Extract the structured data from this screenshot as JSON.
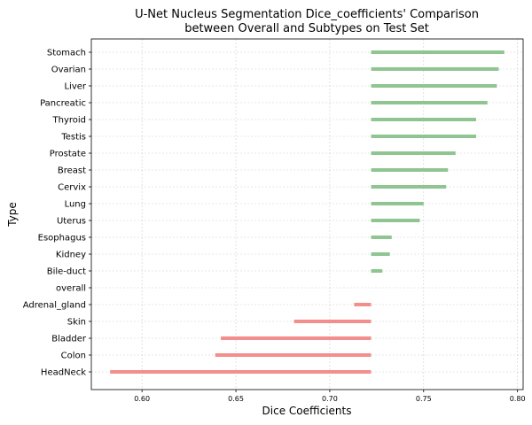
{
  "chart_data": {
    "type": "bar",
    "orientation": "horizontal-diverging",
    "title_line1": "U-Net Nucleus Segmentation Dice_coefficients' Comparison",
    "title_line2": "between Overall and Subtypes on Test Set",
    "xlabel": "Dice Coefficients",
    "ylabel": "Type",
    "xlim": [
      0.573,
      0.803
    ],
    "baseline_category": "overall",
    "baseline_value": 0.722,
    "x_ticks": [
      "0.60",
      "0.65",
      "0.70",
      "0.75",
      "0.80"
    ],
    "grid": true,
    "colors": {
      "above": "#8fc591",
      "below": "#f28e8c"
    },
    "categories": [
      "Stomach",
      "Ovarian",
      "Liver",
      "Pancreatic",
      "Thyroid",
      "Testis",
      "Prostate",
      "Breast",
      "Cervix",
      "Lung",
      "Uterus",
      "Esophagus",
      "Kidney",
      "Bile-duct",
      "overall",
      "Adrenal_gland",
      "Skin",
      "Bladder",
      "Colon",
      "HeadNeck"
    ],
    "values": [
      0.793,
      0.79,
      0.789,
      0.784,
      0.778,
      0.778,
      0.767,
      0.763,
      0.762,
      0.75,
      0.748,
      0.733,
      0.732,
      0.728,
      0.722,
      0.713,
      0.681,
      0.642,
      0.639,
      0.583
    ]
  }
}
